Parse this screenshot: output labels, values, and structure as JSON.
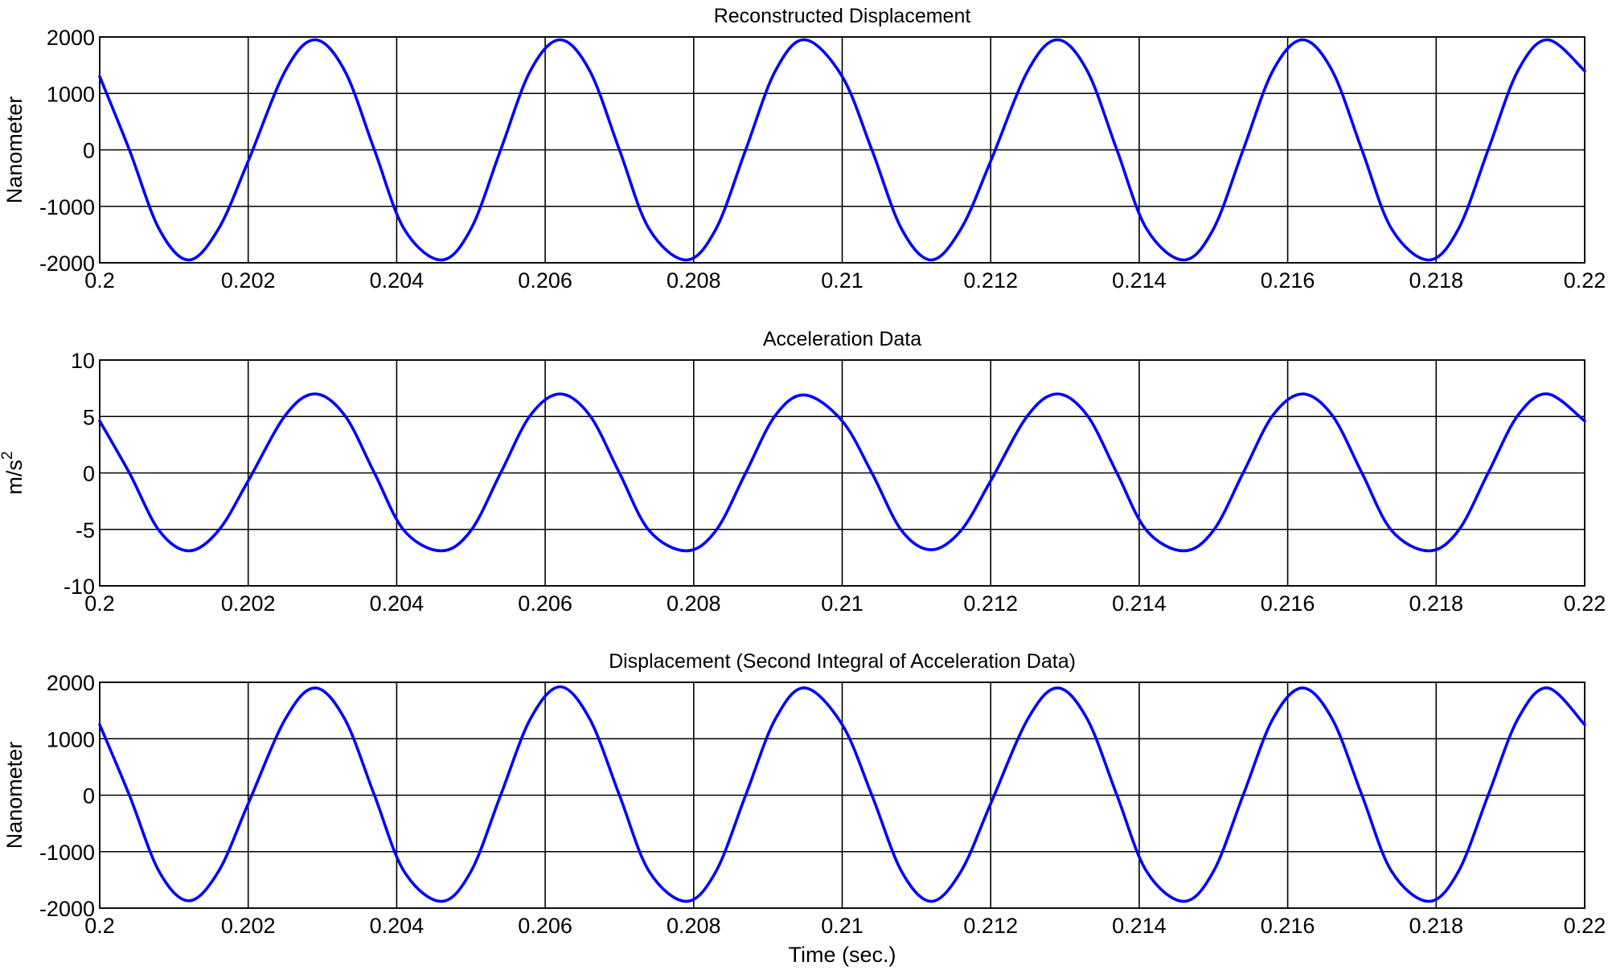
{
  "chart_data": [
    {
      "type": "line",
      "title": "Reconstructed Displacement",
      "ylabel": "Nanometer",
      "xlabel": "",
      "xlim": [
        0.2,
        0.22
      ],
      "ylim": [
        -2000,
        2000
      ],
      "grid": true,
      "xticks": [
        0.2,
        0.202,
        0.204,
        0.206,
        0.208,
        0.21,
        0.212,
        0.214,
        0.216,
        0.218,
        0.22
      ],
      "xtick_labels": [
        "0.2",
        "0.202",
        "0.204",
        "0.206",
        "0.208",
        "0.21",
        "0.212",
        "0.214",
        "0.216",
        "0.218",
        "0.22"
      ],
      "yticks": [
        -2000,
        -1000,
        0,
        1000,
        2000
      ],
      "ytick_labels": [
        "-2000",
        "-1000",
        "0",
        "1000",
        "2000"
      ],
      "series": [
        {
          "color": "#0000ff",
          "x": [
            0.2,
            0.2004,
            0.2008,
            0.2012,
            0.2016,
            0.202,
            0.2025,
            0.2029,
            0.2033,
            0.2037,
            0.2041,
            0.2046,
            0.205,
            0.2054,
            0.2058,
            0.2062,
            0.2066,
            0.207,
            0.2074,
            0.2079,
            0.2083,
            0.2087,
            0.2091,
            0.2095,
            0.21,
            0.2104,
            0.2108,
            0.2112,
            0.2116,
            0.212,
            0.2125,
            0.2129,
            0.2133,
            0.2137,
            0.2141,
            0.2146,
            0.215,
            0.2154,
            0.2158,
            0.2162,
            0.2166,
            0.217,
            0.2174,
            0.2179,
            0.2183,
            0.2187,
            0.2191,
            0.2195,
            0.22
          ],
          "y": [
            1300,
            0,
            -1400,
            -1950,
            -1400,
            -200,
            1400,
            1950,
            1400,
            0,
            -1400,
            -1950,
            -1400,
            0,
            1400,
            1950,
            1400,
            0,
            -1400,
            -1950,
            -1400,
            0,
            1400,
            1950,
            1300,
            0,
            -1400,
            -1950,
            -1400,
            -200,
            1400,
            1950,
            1400,
            0,
            -1400,
            -1950,
            -1400,
            0,
            1400,
            1950,
            1400,
            0,
            -1400,
            -1950,
            -1400,
            0,
            1400,
            1950,
            1400
          ]
        }
      ]
    },
    {
      "type": "line",
      "title": "Acceleration Data",
      "ylabel": "m/s",
      "ylabel_superscript": "2",
      "xlabel": "",
      "xlim": [
        0.2,
        0.22
      ],
      "ylim": [
        -10,
        10
      ],
      "grid": true,
      "xticks": [
        0.2,
        0.202,
        0.204,
        0.206,
        0.208,
        0.21,
        0.212,
        0.214,
        0.216,
        0.218,
        0.22
      ],
      "xtick_labels": [
        "0.2",
        "0.202",
        "0.204",
        "0.206",
        "0.208",
        "0.21",
        "0.212",
        "0.214",
        "0.216",
        "0.218",
        "0.22"
      ],
      "yticks": [
        -10,
        -5,
        0,
        5,
        10
      ],
      "ytick_labels": [
        "-10",
        "-5",
        "0",
        "5",
        "10"
      ],
      "series": [
        {
          "color": "#0000ff",
          "x": [
            0.2,
            0.2004,
            0.2008,
            0.2012,
            0.2016,
            0.202,
            0.2025,
            0.2029,
            0.2033,
            0.2037,
            0.2041,
            0.2046,
            0.205,
            0.2054,
            0.2058,
            0.2062,
            0.2066,
            0.207,
            0.2074,
            0.2079,
            0.2083,
            0.2087,
            0.2091,
            0.2095,
            0.21,
            0.2104,
            0.2108,
            0.2112,
            0.2116,
            0.212,
            0.2125,
            0.2129,
            0.2133,
            0.2137,
            0.2141,
            0.2146,
            0.215,
            0.2154,
            0.2158,
            0.2162,
            0.2166,
            0.217,
            0.2174,
            0.2179,
            0.2183,
            0.2187,
            0.2191,
            0.2195,
            0.22
          ],
          "y": [
            4.6,
            0,
            -5.1,
            -6.9,
            -5.1,
            -0.7,
            5.1,
            7.0,
            5.1,
            0,
            -5.1,
            -6.9,
            -5.1,
            0,
            5.1,
            7.0,
            5.1,
            0,
            -5.1,
            -6.9,
            -5.1,
            0,
            5.1,
            6.9,
            4.6,
            0,
            -5.1,
            -6.8,
            -5.1,
            -0.7,
            5.1,
            7.0,
            5.1,
            0,
            -5.1,
            -6.9,
            -5.1,
            0,
            5.1,
            7.0,
            5.1,
            0,
            -5.1,
            -6.9,
            -5.1,
            0,
            5.1,
            7.0,
            4.6
          ]
        }
      ]
    },
    {
      "type": "line",
      "title": "Displacement (Second Integral of Acceleration Data)",
      "ylabel": "Nanometer",
      "xlabel": "Time (sec.)",
      "xlim": [
        0.2,
        0.22
      ],
      "ylim": [
        -2000,
        2000
      ],
      "grid": true,
      "xticks": [
        0.2,
        0.202,
        0.204,
        0.206,
        0.208,
        0.21,
        0.212,
        0.214,
        0.216,
        0.218,
        0.22
      ],
      "xtick_labels": [
        "0.2",
        "0.202",
        "0.204",
        "0.206",
        "0.208",
        "0.21",
        "0.212",
        "0.214",
        "0.216",
        "0.218",
        "0.22"
      ],
      "yticks": [
        -2000,
        -1000,
        0,
        1000,
        2000
      ],
      "ytick_labels": [
        "-2000",
        "-1000",
        "0",
        "1000",
        "2000"
      ],
      "series": [
        {
          "color": "#0000ff",
          "x": [
            0.2,
            0.2004,
            0.2008,
            0.2012,
            0.2016,
            0.202,
            0.2025,
            0.2029,
            0.2033,
            0.2037,
            0.2041,
            0.2046,
            0.205,
            0.2054,
            0.2058,
            0.2062,
            0.2066,
            0.207,
            0.2074,
            0.2079,
            0.2083,
            0.2087,
            0.2091,
            0.2095,
            0.21,
            0.2104,
            0.2108,
            0.2112,
            0.2116,
            0.212,
            0.2125,
            0.2129,
            0.2133,
            0.2137,
            0.2141,
            0.2146,
            0.215,
            0.2154,
            0.2158,
            0.2162,
            0.2166,
            0.217,
            0.2174,
            0.2179,
            0.2183,
            0.2187,
            0.2191,
            0.2195,
            0.22
          ],
          "y": [
            1250,
            0,
            -1350,
            -1870,
            -1350,
            -150,
            1350,
            1900,
            1350,
            0,
            -1350,
            -1880,
            -1350,
            0,
            1350,
            1920,
            1350,
            0,
            -1350,
            -1880,
            -1350,
            0,
            1350,
            1900,
            1250,
            0,
            -1350,
            -1880,
            -1350,
            -150,
            1350,
            1900,
            1350,
            0,
            -1350,
            -1880,
            -1350,
            0,
            1350,
            1900,
            1350,
            0,
            -1350,
            -1880,
            -1350,
            0,
            1350,
            1900,
            1250
          ]
        }
      ]
    }
  ]
}
